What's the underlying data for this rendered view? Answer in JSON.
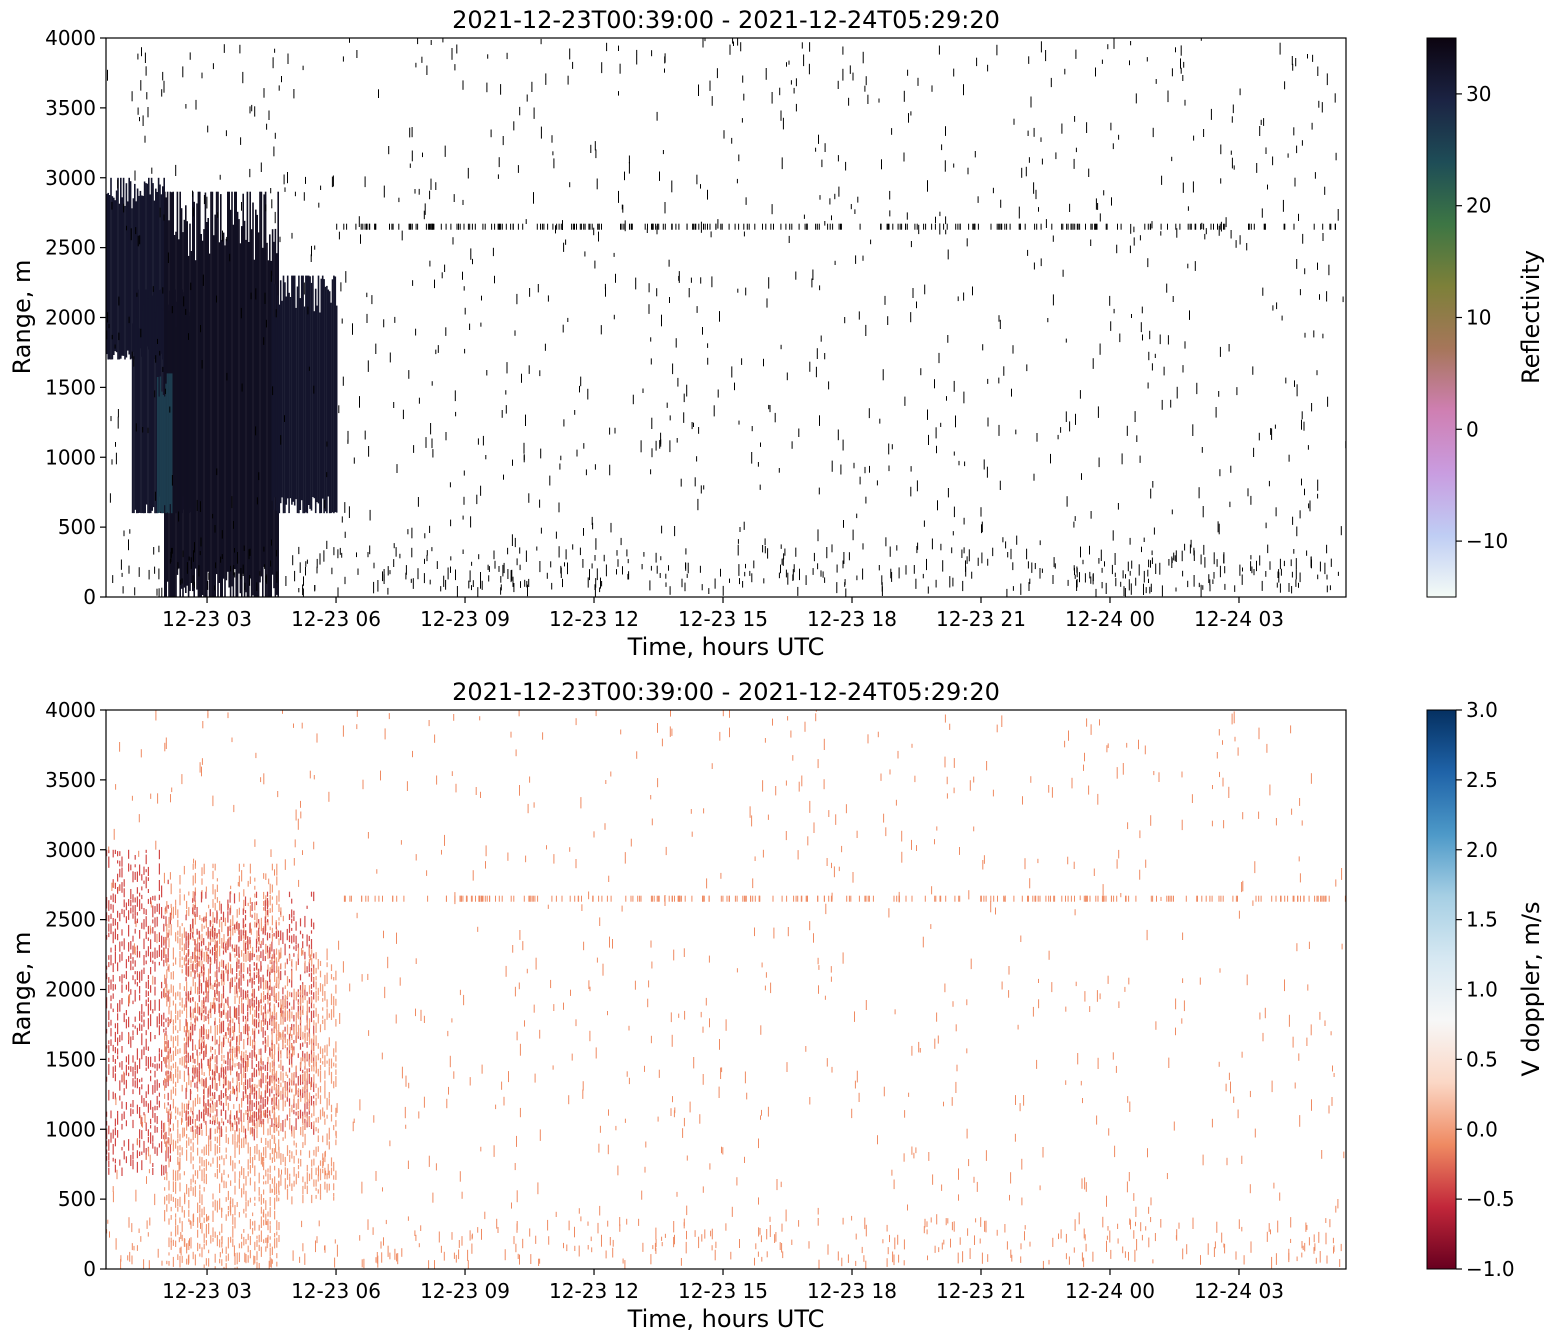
{
  "chart_data": [
    {
      "type": "heatmap",
      "title": "2021-12-23T00:39:00 - 2021-12-24T05:29:20",
      "xlabel": "Time, hours UTC",
      "ylabel": "Range, m",
      "xlim": [
        "2021-12-23T00:39:00",
        "2021-12-24T05:29:20"
      ],
      "ylim": [
        0,
        4000
      ],
      "x_ticks": [
        "12-23 03",
        "12-23 06",
        "12-23 09",
        "12-23 12",
        "12-23 15",
        "12-23 18",
        "12-23 21",
        "12-24 00",
        "12-24 03"
      ],
      "y_ticks": [
        "0",
        "500",
        "1000",
        "1500",
        "2000",
        "2500",
        "3000",
        "3500",
        "4000"
      ],
      "colorbar": {
        "label": "Reflectivity",
        "range": [
          -15,
          35
        ],
        "ticks": [
          "−10",
          "0",
          "10",
          "20",
          "30"
        ],
        "colormap": "cubehelix_r",
        "colors": [
          "#f4fbf6",
          "#bfcdf4",
          "#c99ce0",
          "#cf7fb2",
          "#a6765a",
          "#7d8039",
          "#3d7644",
          "#1e4d57",
          "#1b2343",
          "#0c0410"
        ]
      },
      "echo_regions": [
        {
          "time_start": "2021-12-23T00:39:00",
          "time_end": "2021-12-23T02:00:00",
          "range_bottom": 1700,
          "range_top": 3000,
          "value": 32
        },
        {
          "time_start": "2021-12-23T01:15:00",
          "time_end": "2021-12-23T02:40:00",
          "range_bottom": 600,
          "range_top": 2200,
          "value": 32
        },
        {
          "time_start": "2021-12-23T02:00:00",
          "time_end": "2021-12-23T04:40:00",
          "range_bottom": 0,
          "range_top": 2900,
          "value": 33
        },
        {
          "time_start": "2021-12-23T04:30:00",
          "time_end": "2021-12-23T06:00:00",
          "range_bottom": 600,
          "range_top": 2300,
          "value": 32
        },
        {
          "time_start": "2021-12-23T01:50:00",
          "time_end": "2021-12-23T02:10:00",
          "range_bottom": 600,
          "range_top": 1600,
          "value": 26
        }
      ]
    },
    {
      "type": "heatmap",
      "title": "2021-12-23T00:39:00 - 2021-12-24T05:29:20",
      "xlabel": "Time, hours UTC",
      "ylabel": "Range, m",
      "xlim": [
        "2021-12-23T00:39:00",
        "2021-12-24T05:29:20"
      ],
      "ylim": [
        0,
        4000
      ],
      "x_ticks": [
        "12-23 03",
        "12-23 06",
        "12-23 09",
        "12-23 12",
        "12-23 15",
        "12-23 18",
        "12-23 21",
        "12-24 00",
        "12-24 03"
      ],
      "y_ticks": [
        "0",
        "500",
        "1000",
        "1500",
        "2000",
        "2500",
        "3000",
        "3500",
        "4000"
      ],
      "colorbar": {
        "label": "V doppler, m/s",
        "range": [
          -1.0,
          3.0
        ],
        "ticks": [
          "−1.0",
          "−0.5",
          "0.0",
          "0.5",
          "1.0",
          "1.5",
          "2.0",
          "2.5",
          "3.0"
        ],
        "tick_values": [
          -1.0,
          -0.5,
          0.0,
          0.5,
          1.0,
          1.5,
          2.0,
          2.5,
          3.0
        ],
        "colormap": "RdBu",
        "colors": [
          "#67001f",
          "#c2273a",
          "#ef8a62",
          "#fbd7c5",
          "#f7f7f7",
          "#d6e8f2",
          "#a6cfe4",
          "#4d99c8",
          "#1f63a8",
          "#053061"
        ]
      },
      "echo_regions": [
        {
          "time_start": "2021-12-23T00:39:00",
          "time_end": "2021-12-23T02:10:00",
          "range_bottom": 700,
          "range_top": 3000,
          "value": -0.4
        },
        {
          "time_start": "2021-12-23T02:00:00",
          "time_end": "2021-12-23T04:40:00",
          "range_bottom": 0,
          "range_top": 2900,
          "value": 0.0
        },
        {
          "time_start": "2021-12-23T02:30:00",
          "time_end": "2021-12-23T05:30:00",
          "range_bottom": 1000,
          "range_top": 2700,
          "value": -0.4
        },
        {
          "time_start": "2021-12-23T04:30:00",
          "time_end": "2021-12-23T06:00:00",
          "range_bottom": 500,
          "range_top": 2300,
          "value": 0.0
        }
      ]
    }
  ]
}
